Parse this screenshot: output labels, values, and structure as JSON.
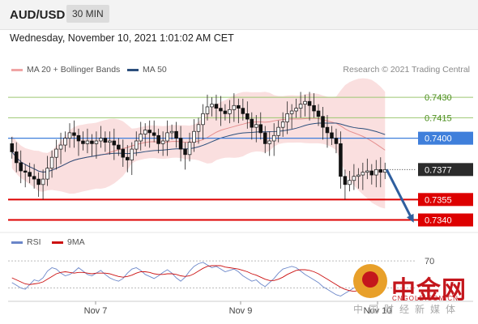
{
  "header": {
    "symbol": "AUD/USD",
    "timeframe": "30 MIN"
  },
  "timestamp": "Wednesday, November 10, 2021 1:01:02 AM CET",
  "legend": {
    "bollinger": "MA 20 + Bollinger Bands",
    "ma50": "MA 50",
    "rsi": "RSI",
    "ma9": "9MA"
  },
  "credit": "Research © 2021 Trading Central",
  "colors": {
    "bollinger": "#f0a4a4",
    "ma50": "#2c4f7c",
    "rsi": "#6b86c9",
    "ma9": "#cc1111",
    "resistance": "#9cc770",
    "pivot": "#3f7fdb",
    "support": "#dd0000",
    "arrow": "#2f5f9e"
  },
  "chart_data": [
    {
      "type": "candlestick",
      "x_tick_labels": [
        "Nov 7",
        "Nov 9",
        "Nov 10"
      ],
      "y_range": [
        0.7332,
        0.7442
      ],
      "levels": [
        {
          "value": 0.743,
          "label": "0.7430",
          "kind": "resistance"
        },
        {
          "value": 0.7415,
          "label": "0.7415",
          "kind": "resistance"
        },
        {
          "value": 0.74,
          "label": "0.7400",
          "kind": "pivot"
        },
        {
          "value": 0.7355,
          "label": "0.7355",
          "kind": "support"
        },
        {
          "value": 0.734,
          "label": "0.7340",
          "kind": "support"
        }
      ],
      "last_price": {
        "value": 0.7377,
        "label": "0.7377"
      },
      "close_series": [
        0.739,
        0.7382,
        0.7376,
        0.7375,
        0.7372,
        0.737,
        0.7366,
        0.737,
        0.7378,
        0.7386,
        0.7392,
        0.7395,
        0.74,
        0.7404,
        0.7402,
        0.7398,
        0.7396,
        0.7398,
        0.7396,
        0.7398,
        0.74,
        0.7397,
        0.7398,
        0.7395,
        0.7392,
        0.7386,
        0.7384,
        0.7392,
        0.7398,
        0.7403,
        0.7406,
        0.7404,
        0.7402,
        0.7396,
        0.7398,
        0.7404,
        0.7405,
        0.74,
        0.7392,
        0.7388,
        0.7397,
        0.7405,
        0.741,
        0.7418,
        0.7423,
        0.7425,
        0.7422,
        0.742,
        0.7418,
        0.7421,
        0.7424,
        0.7422,
        0.7418,
        0.7414,
        0.7408,
        0.741,
        0.7404,
        0.7396,
        0.7398,
        0.7402,
        0.7408,
        0.7412,
        0.7418,
        0.742,
        0.7422,
        0.7425,
        0.7427,
        0.7424,
        0.742,
        0.7416,
        0.7408,
        0.7404,
        0.74,
        0.7396,
        0.7372,
        0.7366,
        0.7369,
        0.7372,
        0.7373,
        0.7375,
        0.7376,
        0.7373,
        0.7377,
        0.7375,
        0.7377
      ],
      "forecast": {
        "from": 0.7377,
        "to": 0.734
      }
    },
    {
      "type": "line",
      "name": "RSI",
      "y_tick_labels": [
        "70"
      ],
      "series": [
        {
          "name": "RSI",
          "values": [
            38,
            34,
            30,
            28,
            35,
            42,
            40,
            45,
            55,
            60,
            58,
            52,
            48,
            50,
            54,
            60,
            55,
            50,
            48,
            52,
            56,
            50,
            45,
            42,
            40,
            44,
            52,
            58,
            60,
            56,
            50,
            47,
            44,
            48,
            53,
            57,
            52,
            45,
            40,
            46,
            55,
            62,
            66,
            68,
            64,
            60,
            62,
            58,
            54,
            56,
            58,
            54,
            48,
            44,
            40,
            42,
            36,
            32,
            38,
            44,
            52,
            58,
            60,
            62,
            60,
            55,
            50,
            46,
            42,
            38,
            32,
            28,
            24,
            20,
            18,
            22,
            26,
            30,
            34,
            36,
            38,
            34,
            37,
            35,
            36
          ]
        },
        {
          "name": "9MA",
          "values": [
            45,
            42,
            39,
            36,
            35,
            36,
            37,
            39,
            43,
            47,
            51,
            53,
            54,
            53,
            52,
            53,
            53,
            52,
            51,
            52,
            52,
            52,
            51,
            49,
            47,
            46,
            47,
            49,
            52,
            54,
            54,
            53,
            51,
            50,
            50,
            51,
            51,
            50,
            48,
            47,
            48,
            51,
            55,
            59,
            62,
            63,
            63,
            63,
            61,
            60,
            59,
            58,
            56,
            54,
            51,
            49,
            46,
            43,
            41,
            41,
            43,
            46,
            50,
            53,
            56,
            57,
            57,
            56,
            54,
            51,
            47,
            43,
            39,
            35,
            31,
            28,
            26,
            25,
            26,
            28,
            30,
            31,
            33,
            34,
            35
          ]
        }
      ]
    }
  ],
  "watermark": {
    "cn_brand": "中金网",
    "url": "CNGOLD.COM.CN",
    "cn_sub": "中国财经新媒体"
  }
}
